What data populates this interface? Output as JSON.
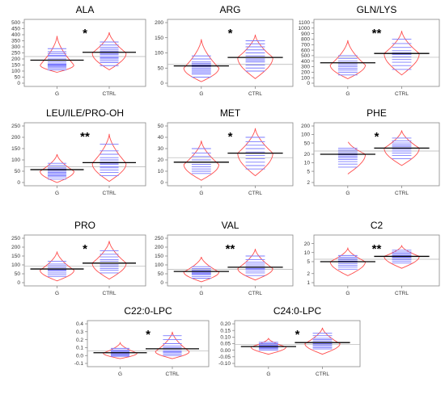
{
  "chart_data": [
    {
      "type": "beanplot",
      "title": "ALA",
      "significance": "*",
      "categories": [
        "G",
        "CTRL"
      ],
      "yscale": "linear",
      "ylim": [
        0,
        500
      ],
      "yticks": [
        "0",
        "50",
        "100",
        "150",
        "200",
        "250",
        "300",
        "350",
        "400",
        "450",
        "500"
      ],
      "overall_mean": 220,
      "groups": [
        {
          "name": "G",
          "mean": 190,
          "range": [
            90,
            390
          ],
          "mode": 150,
          "values": [
            110,
            125,
            135,
            145,
            150,
            155,
            160,
            175,
            190,
            200,
            220,
            230,
            245,
            260,
            285
          ]
        },
        {
          "name": "CTRL",
          "mean": 255,
          "range": [
            110,
            420
          ],
          "mode": 250,
          "values": [
            145,
            170,
            185,
            200,
            210,
            220,
            235,
            245,
            255,
            265,
            280,
            295,
            315,
            340
          ]
        }
      ]
    },
    {
      "type": "beanplot",
      "title": "ARG",
      "significance": "*",
      "categories": [
        "G",
        "CTRL"
      ],
      "yscale": "linear",
      "ylim": [
        0,
        200
      ],
      "yticks": [
        "0",
        "50",
        "100",
        "150",
        "200"
      ],
      "overall_mean": 62,
      "groups": [
        {
          "name": "G",
          "mean": 57,
          "range": [
            5,
            145
          ],
          "mode": 50,
          "values": [
            20,
            30,
            35,
            40,
            45,
            50,
            55,
            60,
            65,
            70,
            80,
            90
          ]
        },
        {
          "name": "CTRL",
          "mean": 85,
          "range": [
            15,
            160
          ],
          "mode": 85,
          "values": [
            40,
            50,
            60,
            70,
            75,
            80,
            90,
            100,
            110,
            120,
            130,
            140
          ]
        }
      ]
    },
    {
      "type": "beanplot",
      "title": "GLN/LYS",
      "significance": "**",
      "categories": [
        "G",
        "CTRL"
      ],
      "yscale": "linear",
      "ylim": [
        0,
        1100
      ],
      "yticks": [
        "0",
        "100",
        "200",
        "300",
        "400",
        "500",
        "600",
        "700",
        "800",
        "900",
        "1000",
        "1100"
      ],
      "overall_mean": 470,
      "groups": [
        {
          "name": "G",
          "mean": 370,
          "range": [
            80,
            780
          ],
          "mode": 330,
          "values": [
            150,
            200,
            240,
            270,
            300,
            330,
            360,
            400,
            450,
            500
          ]
        },
        {
          "name": "CTRL",
          "mean": 540,
          "range": [
            150,
            950
          ],
          "mode": 540,
          "values": [
            250,
            320,
            380,
            430,
            480,
            520,
            550,
            590,
            650,
            720,
            800
          ]
        }
      ]
    },
    {
      "type": "beanplot",
      "title": "LEU/ILE/PRO-OH",
      "significance": "**",
      "categories": [
        "G",
        "CTRL"
      ],
      "yscale": "linear",
      "ylim": [
        0,
        250
      ],
      "yticks": [
        "0",
        "50",
        "100",
        "150",
        "200",
        "250"
      ],
      "overall_mean": 70,
      "groups": [
        {
          "name": "G",
          "mean": 57,
          "range": [
            0,
            125
          ],
          "mode": 50,
          "values": [
            15,
            25,
            30,
            35,
            40,
            45,
            50,
            55,
            60,
            65,
            75,
            85
          ]
        },
        {
          "name": "CTRL",
          "mean": 88,
          "range": [
            5,
            215
          ],
          "mode": 85,
          "values": [
            30,
            45,
            55,
            65,
            70,
            80,
            85,
            90,
            100,
            110,
            125,
            140,
            170
          ]
        }
      ]
    },
    {
      "type": "beanplot",
      "title": "MET",
      "significance": "*",
      "categories": [
        "G",
        "CTRL"
      ],
      "yscale": "linear",
      "ylim": [
        0,
        50
      ],
      "yticks": [
        "0",
        "10",
        "20",
        "30",
        "40",
        "50"
      ],
      "overall_mean": 22,
      "groups": [
        {
          "name": "G",
          "mean": 18,
          "range": [
            2,
            37
          ],
          "mode": 16,
          "values": [
            8,
            10,
            12,
            14,
            16,
            18,
            20,
            23,
            26,
            30
          ]
        },
        {
          "name": "CTRL",
          "mean": 26,
          "range": [
            6,
            48
          ],
          "mode": 26,
          "values": [
            12,
            15,
            18,
            21,
            24,
            27,
            30,
            33,
            36,
            40
          ]
        }
      ]
    },
    {
      "type": "beanplot",
      "title": "PHE",
      "significance": "*",
      "categories": [
        "G",
        "CTRL"
      ],
      "yscale": "log",
      "ylim": [
        2,
        200
      ],
      "yticks": [
        "2",
        "5",
        "10",
        "20",
        "50",
        "100",
        "200"
      ],
      "overall_mean": 26,
      "groups": [
        {
          "name": "G",
          "mean": 20,
          "range": [
            4,
            60
          ],
          "mode": 20,
          "values": [
            7,
            9,
            11,
            13,
            15,
            17,
            19,
            21,
            24,
            28,
            33
          ]
        },
        {
          "name": "CTRL",
          "mean": 33,
          "range": [
            8,
            140
          ],
          "mode": 33,
          "values": [
            14,
            18,
            22,
            26,
            30,
            34,
            38,
            43,
            50,
            60,
            75
          ]
        }
      ]
    },
    {
      "type": "beanplot",
      "title": "PRO",
      "significance": "*",
      "categories": [
        "G",
        "CTRL"
      ],
      "yscale": "linear",
      "ylim": [
        0,
        250
      ],
      "yticks": [
        "0",
        "50",
        "100",
        "150",
        "200",
        "250"
      ],
      "overall_mean": 93,
      "groups": [
        {
          "name": "G",
          "mean": 77,
          "range": [
            10,
            175
          ],
          "mode": 70,
          "values": [
            35,
            45,
            55,
            65,
            70,
            75,
            85,
            95,
            105,
            120
          ]
        },
        {
          "name": "CTRL",
          "mean": 110,
          "range": [
            20,
            235
          ],
          "mode": 110,
          "values": [
            55,
            70,
            80,
            90,
            100,
            110,
            120,
            130,
            145,
            160,
            180
          ]
        }
      ]
    },
    {
      "type": "beanplot",
      "title": "VAL",
      "significance": "**",
      "categories": [
        "G",
        "CTRL"
      ],
      "yscale": "linear",
      "ylim": [
        0,
        250
      ],
      "yticks": [
        "0",
        "50",
        "100",
        "150",
        "200",
        "250"
      ],
      "overall_mean": 75,
      "groups": [
        {
          "name": "G",
          "mean": 63,
          "range": [
            5,
            145
          ],
          "mode": 60,
          "values": [
            25,
            35,
            45,
            50,
            55,
            60,
            65,
            70,
            80,
            90
          ]
        },
        {
          "name": "CTRL",
          "mean": 87,
          "range": [
            15,
            190
          ],
          "mode": 80,
          "values": [
            40,
            55,
            65,
            75,
            80,
            85,
            95,
            105,
            115,
            130,
            150
          ]
        }
      ]
    },
    {
      "type": "beanplot",
      "title": "C2",
      "significance": "**",
      "categories": [
        "G",
        "CTRL"
      ],
      "yscale": "log",
      "ylim": [
        1,
        30
      ],
      "yticks": [
        "1",
        "2",
        "5",
        "10",
        "20"
      ],
      "overall_mean": 6,
      "groups": [
        {
          "name": "G",
          "mean": 5,
          "range": [
            1.7,
            14
          ],
          "mode": 5,
          "values": [
            2.8,
            3.3,
            3.8,
            4.3,
            4.8,
            5.2,
            5.7,
            6.3,
            7,
            8
          ]
        },
        {
          "name": "CTRL",
          "mean": 7.5,
          "range": [
            3,
            17
          ],
          "mode": 7.5,
          "values": [
            4.5,
            5.2,
            5.8,
            6.5,
            7,
            7.5,
            8,
            8.7,
            9.5,
            10.5,
            12
          ]
        }
      ]
    },
    {
      "type": "beanplot",
      "title": "C22:0-LPC",
      "significance": "*",
      "categories": [
        "G",
        "CTRL"
      ],
      "yscale": "linear",
      "ylim": [
        -0.1,
        0.4
      ],
      "yticks": [
        "-0.1",
        "0.0",
        "0.1",
        "0.2",
        "0.3",
        "0.4"
      ],
      "overall_mean": 0.06,
      "groups": [
        {
          "name": "G",
          "mean": 0.035,
          "range": [
            -0.04,
            0.16
          ],
          "mode": 0.03,
          "values": [
            -0.01,
            0,
            0.01,
            0.02,
            0.03,
            0.04,
            0.05,
            0.06,
            0.07,
            0.09
          ]
        },
        {
          "name": "CTRL",
          "mean": 0.085,
          "range": [
            -0.04,
            0.3
          ],
          "mode": 0.05,
          "values": [
            0,
            0.02,
            0.04,
            0.05,
            0.06,
            0.08,
            0.1,
            0.12,
            0.15,
            0.2,
            0.25
          ]
        }
      ]
    },
    {
      "type": "beanplot",
      "title": "C24:0-LPC",
      "significance": "*",
      "categories": [
        "G",
        "CTRL"
      ],
      "yscale": "linear",
      "ylim": [
        -0.1,
        0.2
      ],
      "yticks": [
        "-0.10",
        "-0.05",
        "0.00",
        "0.05",
        "0.10",
        "0.15",
        "0.20"
      ],
      "overall_mean": 0.045,
      "groups": [
        {
          "name": "G",
          "mean": 0.028,
          "range": [
            -0.03,
            0.09
          ],
          "mode": 0.025,
          "values": [
            0,
            0.01,
            0.015,
            0.02,
            0.025,
            0.03,
            0.035,
            0.04,
            0.05,
            0.06
          ]
        },
        {
          "name": "CTRL",
          "mean": 0.058,
          "range": [
            -0.03,
            0.17
          ],
          "mode": 0.05,
          "values": [
            0.01,
            0.02,
            0.03,
            0.04,
            0.05,
            0.06,
            0.07,
            0.08,
            0.09,
            0.11,
            0.13
          ]
        }
      ]
    }
  ]
}
